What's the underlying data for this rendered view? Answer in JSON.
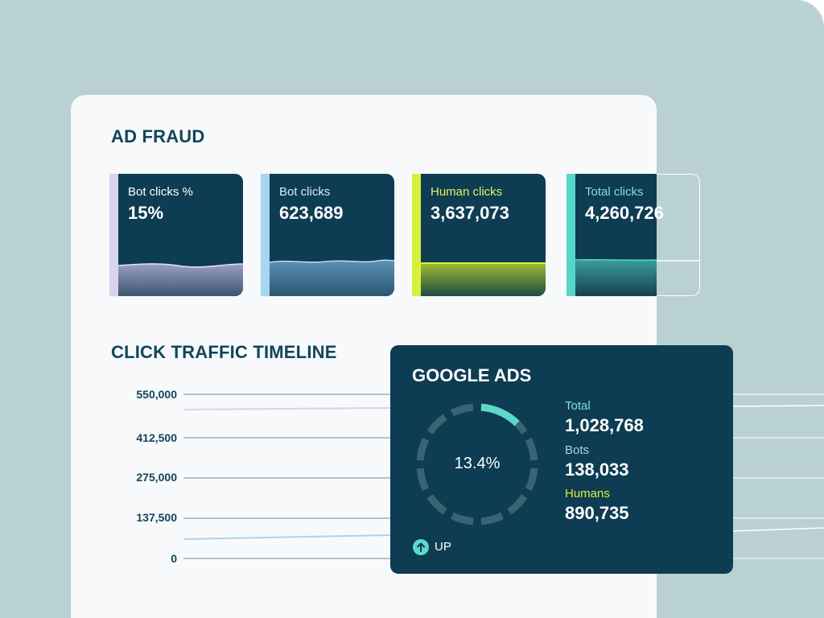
{
  "ad_fraud": {
    "title": "AD FRAUD",
    "cards": [
      {
        "label": "Bot clicks %",
        "value": "15%",
        "accent": "#d9d3f0",
        "label_color": "#ffffff"
      },
      {
        "label": "Bot clicks",
        "value": "623,689",
        "accent": "#a9d4f2",
        "label_color": "#d7ecfa"
      },
      {
        "label": "Human clicks",
        "value": "3,637,073",
        "accent": "#d7f03a",
        "label_color": "#dff36a"
      },
      {
        "label": "Total clicks",
        "value": "4,260,726",
        "accent": "#56d6c8",
        "label_color": "#7fe3d7"
      }
    ]
  },
  "timeline": {
    "title": "CLICK TRAFFIC TIMELINE",
    "y_ticks": [
      "550,000",
      "412,500",
      "275,000",
      "137,500",
      "0"
    ],
    "y_values": [
      550000,
      412500,
      275000,
      137500,
      0
    ]
  },
  "google_ads": {
    "title": "GOOGLE ADS",
    "percent_label": "13.4%",
    "bot_fraction": 0.134,
    "total_label": "Total",
    "total_value": "1,028,768",
    "bots_label": "Bots",
    "bots_value": "138,033",
    "humans_label": "Humans",
    "humans_value": "890,735",
    "trend_label": "UP",
    "trend_icon": "arrow-up-icon",
    "colors": {
      "total": "#7fe3d7",
      "bots": "#a9d4f2",
      "humans": "#d7f03a",
      "donut_accent": "#5ed8cb",
      "donut_track": "#3a6373"
    }
  }
}
